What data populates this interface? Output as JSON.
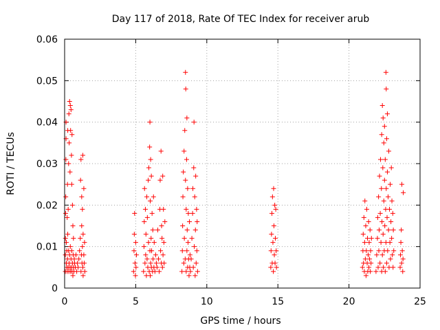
{
  "chart_data": {
    "type": "scatter",
    "title": "Day 117 of 2018, Rate Of TEC Index for receiver arub",
    "xlabel": "GPS time / hours",
    "ylabel": "ROTI / TECUs",
    "xlim": [
      0,
      25
    ],
    "ylim": [
      0,
      0.06
    ],
    "xticks": [
      0,
      5,
      10,
      15,
      20,
      25
    ],
    "xtick_labels": [
      "0",
      "5",
      "10",
      "15",
      "20",
      "25"
    ],
    "yticks": [
      0,
      0.01,
      0.02,
      0.03,
      0.04,
      0.05,
      0.06
    ],
    "ytick_labels": [
      "0",
      "0.01",
      "0.02",
      "0.03",
      "0.04",
      "0.05",
      "0.06"
    ],
    "grid": true,
    "marker": "+",
    "color": "#ff0000",
    "series": [
      {
        "name": "",
        "points": [
          [
            0.05,
            0.004
          ],
          [
            0.05,
            0.008
          ],
          [
            0.06,
            0.012
          ],
          [
            0.07,
            0.018
          ],
          [
            0.08,
            0.022
          ],
          [
            0.09,
            0.031
          ],
          [
            0.1,
            0.036
          ],
          [
            0.1,
            0.04
          ],
          [
            0.12,
            0.006
          ],
          [
            0.12,
            0.011
          ],
          [
            0.15,
            0.005
          ],
          [
            0.15,
            0.009
          ],
          [
            0.18,
            0.004
          ],
          [
            0.18,
            0.017
          ],
          [
            0.2,
            0.007
          ],
          [
            0.2,
            0.025
          ],
          [
            0.22,
            0.013
          ],
          [
            0.22,
            0.038
          ],
          [
            0.25,
            0.005
          ],
          [
            0.25,
            0.019
          ],
          [
            0.28,
            0.009
          ],
          [
            0.28,
            0.03
          ],
          [
            0.3,
            0.004
          ],
          [
            0.3,
            0.042
          ],
          [
            0.32,
            0.006
          ],
          [
            0.32,
            0.035
          ],
          [
            0.35,
            0.008
          ],
          [
            0.35,
            0.045
          ],
          [
            0.38,
            0.005
          ],
          [
            0.38,
            0.028
          ],
          [
            0.4,
            0.01
          ],
          [
            0.4,
            0.044
          ],
          [
            0.42,
            0.004
          ],
          [
            0.42,
            0.038
          ],
          [
            0.45,
            0.007
          ],
          [
            0.45,
            0.043
          ],
          [
            0.48,
            0.005
          ],
          [
            0.48,
            0.032
          ],
          [
            0.5,
            0.009
          ],
          [
            0.5,
            0.025
          ],
          [
            0.52,
            0.004
          ],
          [
            0.52,
            0.037
          ],
          [
            0.55,
            0.006
          ],
          [
            0.55,
            0.02
          ],
          [
            0.58,
            0.003
          ],
          [
            0.58,
            0.015
          ],
          [
            0.6,
            0.008
          ],
          [
            0.62,
            0.005
          ],
          [
            0.62,
            0.012
          ],
          [
            0.65,
            0.004
          ],
          [
            0.68,
            0.007
          ],
          [
            0.7,
            0.006
          ],
          [
            0.75,
            0.005
          ],
          [
            0.8,
            0.008
          ],
          [
            0.85,
            0.004
          ],
          [
            0.9,
            0.006
          ],
          [
            0.95,
            0.005
          ],
          [
            1.0,
            0.007
          ],
          [
            1.05,
            0.009
          ],
          [
            1.1,
            0.012
          ],
          [
            1.12,
            0.026
          ],
          [
            1.15,
            0.004
          ],
          [
            1.15,
            0.031
          ],
          [
            1.18,
            0.008
          ],
          [
            1.2,
            0.015
          ],
          [
            1.2,
            0.022
          ],
          [
            1.22,
            0.006
          ],
          [
            1.25,
            0.01
          ],
          [
            1.25,
            0.019
          ],
          [
            1.28,
            0.005
          ],
          [
            1.28,
            0.032
          ],
          [
            1.3,
            0.013
          ],
          [
            1.3,
            0.003
          ],
          [
            1.35,
            0.008
          ],
          [
            1.35,
            0.024
          ],
          [
            1.38,
            0.006
          ],
          [
            1.4,
            0.011
          ],
          [
            1.42,
            0.004
          ],
          [
            4.85,
            0.004
          ],
          [
            4.88,
            0.009
          ],
          [
            4.9,
            0.013
          ],
          [
            4.92,
            0.018
          ],
          [
            4.95,
            0.006
          ],
          [
            4.98,
            0.003
          ],
          [
            5.0,
            0.011
          ],
          [
            5.02,
            0.005
          ],
          [
            5.05,
            0.008
          ],
          [
            5.55,
            0.004
          ],
          [
            5.58,
            0.01
          ],
          [
            5.6,
            0.016
          ],
          [
            5.62,
            0.024
          ],
          [
            5.65,
            0.006
          ],
          [
            5.68,
            0.019
          ],
          [
            5.7,
            0.008
          ],
          [
            5.72,
            0.013
          ],
          [
            5.75,
            0.003
          ],
          [
            5.78,
            0.022
          ],
          [
            5.8,
            0.007
          ],
          [
            5.82,
            0.017
          ],
          [
            5.85,
            0.005
          ],
          [
            5.88,
            0.026
          ],
          [
            5.9,
            0.011
          ],
          [
            5.92,
            0.029
          ],
          [
            5.95,
            0.004
          ],
          [
            5.98,
            0.034
          ],
          [
            6.0,
            0.009
          ],
          [
            6.0,
            0.04
          ],
          [
            6.02,
            0.003
          ],
          [
            6.02,
            0.021
          ],
          [
            6.05,
            0.006
          ],
          [
            6.05,
            0.031
          ],
          [
            6.08,
            0.012
          ],
          [
            6.1,
            0.005
          ],
          [
            6.1,
            0.027
          ],
          [
            6.12,
            0.009
          ],
          [
            6.15,
            0.018
          ],
          [
            6.18,
            0.004
          ],
          [
            6.2,
            0.014
          ],
          [
            6.22,
            0.007
          ],
          [
            6.25,
            0.022
          ],
          [
            6.28,
            0.005
          ],
          [
            6.3,
            0.011
          ],
          [
            6.35,
            0.004
          ],
          [
            6.4,
            0.008
          ],
          [
            6.45,
            0.006
          ],
          [
            6.5,
            0.005
          ],
          [
            6.55,
            0.014
          ],
          [
            6.6,
            0.007
          ],
          [
            6.65,
            0.004
          ],
          [
            6.7,
            0.019
          ],
          [
            6.72,
            0.026
          ],
          [
            6.75,
            0.009
          ],
          [
            6.78,
            0.033
          ],
          [
            6.8,
            0.006
          ],
          [
            6.82,
            0.015
          ],
          [
            6.85,
            0.012
          ],
          [
            6.88,
            0.005
          ],
          [
            6.9,
            0.027
          ],
          [
            6.92,
            0.008
          ],
          [
            6.95,
            0.019
          ],
          [
            6.98,
            0.011
          ],
          [
            7.0,
            0.006
          ],
          [
            7.05,
            0.016
          ],
          [
            8.25,
            0.004
          ],
          [
            8.28,
            0.009
          ],
          [
            8.3,
            0.015
          ],
          [
            8.32,
            0.022
          ],
          [
            8.35,
            0.028
          ],
          [
            8.38,
            0.006
          ],
          [
            8.4,
            0.033
          ],
          [
            8.42,
            0.012
          ],
          [
            8.45,
            0.038
          ],
          [
            8.48,
            0.007
          ],
          [
            8.5,
            0.052
          ],
          [
            8.5,
            0.026
          ],
          [
            8.52,
            0.048
          ],
          [
            8.55,
            0.004
          ],
          [
            8.55,
            0.019
          ],
          [
            8.58,
            0.031
          ],
          [
            8.6,
            0.009
          ],
          [
            8.6,
            0.041
          ],
          [
            8.62,
            0.014
          ],
          [
            8.65,
            0.005
          ],
          [
            8.65,
            0.024
          ],
          [
            8.68,
            0.011
          ],
          [
            8.7,
            0.018
          ],
          [
            8.72,
            0.007
          ],
          [
            8.75,
            0.003
          ],
          [
            8.78,
            0.016
          ],
          [
            8.8,
            0.005
          ],
          [
            8.82,
            0.008
          ],
          [
            8.85,
            0.004
          ],
          [
            8.9,
            0.007
          ],
          [
            8.95,
            0.012
          ],
          [
            9.0,
            0.018
          ],
          [
            9.02,
            0.024
          ],
          [
            9.05,
            0.005
          ],
          [
            9.08,
            0.029
          ],
          [
            9.1,
            0.04
          ],
          [
            9.12,
            0.01
          ],
          [
            9.15,
            0.022
          ],
          [
            9.18,
            0.003
          ],
          [
            9.2,
            0.014
          ],
          [
            9.22,
            0.027
          ],
          [
            9.25,
            0.006
          ],
          [
            9.28,
            0.019
          ],
          [
            9.3,
            0.009
          ],
          [
            9.32,
            0.016
          ],
          [
            9.35,
            0.004
          ],
          [
            14.5,
            0.005
          ],
          [
            14.52,
            0.009
          ],
          [
            14.55,
            0.013
          ],
          [
            14.58,
            0.018
          ],
          [
            14.6,
            0.006
          ],
          [
            14.62,
            0.022
          ],
          [
            14.65,
            0.011
          ],
          [
            14.68,
            0.004
          ],
          [
            14.7,
            0.024
          ],
          [
            14.72,
            0.015
          ],
          [
            14.75,
            0.008
          ],
          [
            14.78,
            0.02
          ],
          [
            14.8,
            0.006
          ],
          [
            14.82,
            0.012
          ],
          [
            14.85,
            0.019
          ],
          [
            14.88,
            0.009
          ],
          [
            14.9,
            0.005
          ],
          [
            20.95,
            0.005
          ],
          [
            20.98,
            0.009
          ],
          [
            21.0,
            0.013
          ],
          [
            21.02,
            0.006
          ],
          [
            21.05,
            0.017
          ],
          [
            21.08,
            0.004
          ],
          [
            21.1,
            0.011
          ],
          [
            21.12,
            0.021
          ],
          [
            21.15,
            0.007
          ],
          [
            21.18,
            0.015
          ],
          [
            21.2,
            0.003
          ],
          [
            21.22,
            0.009
          ],
          [
            21.25,
            0.019
          ],
          [
            21.28,
            0.006
          ],
          [
            21.3,
            0.012
          ],
          [
            21.32,
            0.004
          ],
          [
            21.35,
            0.008
          ],
          [
            21.38,
            0.016
          ],
          [
            21.4,
            0.005
          ],
          [
            21.42,
            0.011
          ],
          [
            21.45,
            0.007
          ],
          [
            21.48,
            0.014
          ],
          [
            21.5,
            0.004
          ],
          [
            21.52,
            0.009
          ],
          [
            21.55,
            0.006
          ],
          [
            21.58,
            0.012
          ],
          [
            21.9,
            0.004
          ],
          [
            21.95,
            0.008
          ],
          [
            22.0,
            0.012
          ],
          [
            22.02,
            0.017
          ],
          [
            22.05,
            0.005
          ],
          [
            22.08,
            0.022
          ],
          [
            22.1,
            0.009
          ],
          [
            22.12,
            0.014
          ],
          [
            22.15,
            0.027
          ],
          [
            22.18,
            0.006
          ],
          [
            22.2,
            0.018
          ],
          [
            22.22,
            0.031
          ],
          [
            22.25,
            0.011
          ],
          [
            22.28,
            0.024
          ],
          [
            22.3,
            0.004
          ],
          [
            22.3,
            0.037
          ],
          [
            22.32,
            0.016
          ],
          [
            22.35,
            0.044
          ],
          [
            22.35,
            0.008
          ],
          [
            22.38,
            0.029
          ],
          [
            22.4,
            0.013
          ],
          [
            22.4,
            0.041
          ],
          [
            22.42,
            0.005
          ],
          [
            22.45,
            0.021
          ],
          [
            22.45,
            0.035
          ],
          [
            22.48,
            0.009
          ],
          [
            22.5,
            0.026
          ],
          [
            22.5,
            0.039
          ],
          [
            22.52,
            0.015
          ],
          [
            22.55,
            0.004
          ],
          [
            22.55,
            0.031
          ],
          [
            22.58,
            0.019
          ],
          [
            22.6,
            0.052
          ],
          [
            22.6,
            0.011
          ],
          [
            22.62,
            0.048
          ],
          [
            22.62,
            0.024
          ],
          [
            22.65,
            0.006
          ],
          [
            22.65,
            0.036
          ],
          [
            22.68,
            0.017
          ],
          [
            22.7,
            0.028
          ],
          [
            22.7,
            0.042
          ],
          [
            22.72,
            0.009
          ],
          [
            22.75,
            0.022
          ],
          [
            22.78,
            0.014
          ],
          [
            22.8,
            0.033
          ],
          [
            22.82,
            0.005
          ],
          [
            22.85,
            0.019
          ],
          [
            22.88,
            0.011
          ],
          [
            22.9,
            0.025
          ],
          [
            22.92,
            0.007
          ],
          [
            22.95,
            0.016
          ],
          [
            22.98,
            0.029
          ],
          [
            23.0,
            0.012
          ],
          [
            23.02,
            0.021
          ],
          [
            23.05,
            0.008
          ],
          [
            23.08,
            0.018
          ],
          [
            23.1,
            0.005
          ],
          [
            23.12,
            0.014
          ],
          [
            23.15,
            0.009
          ],
          [
            23.6,
            0.005
          ],
          [
            23.62,
            0.008
          ],
          [
            23.65,
            0.011
          ],
          [
            23.68,
            0.014
          ],
          [
            23.7,
            0.006
          ],
          [
            23.72,
            0.025
          ],
          [
            23.75,
            0.009
          ],
          [
            23.78,
            0.004
          ],
          [
            23.8,
            0.007
          ],
          [
            23.82,
            0.023
          ]
        ]
      }
    ]
  }
}
